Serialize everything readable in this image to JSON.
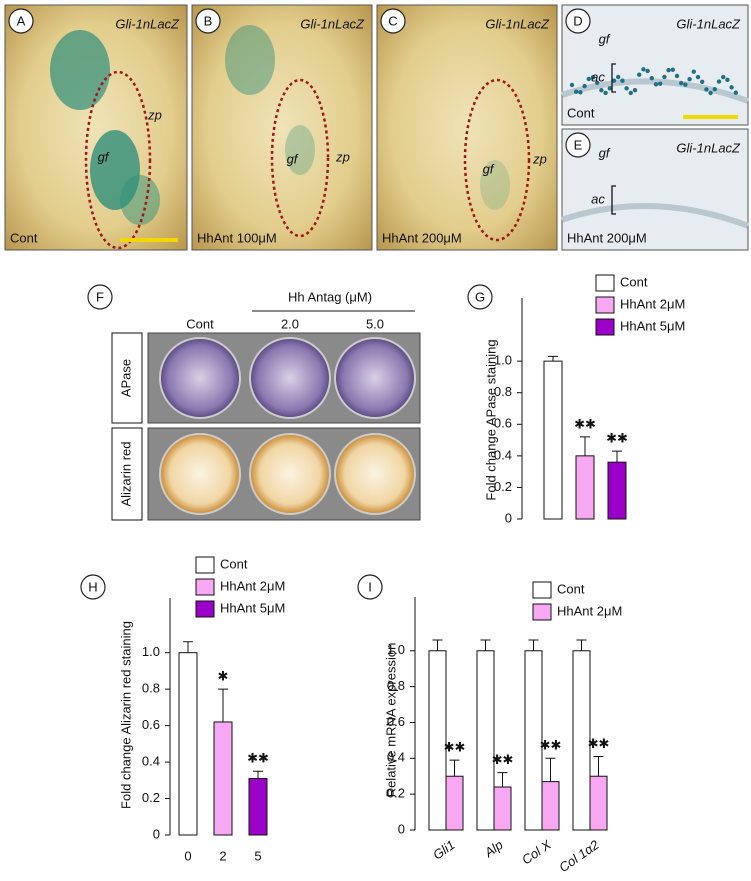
{
  "photo_panels": [
    {
      "label": "A",
      "marker": "Gli-1nLacZ",
      "annotations": [
        "gf",
        "zp"
      ],
      "condition": "Cont"
    },
    {
      "label": "B",
      "marker": "Gli-1nLacZ",
      "annotations": [
        "gf",
        "zp"
      ],
      "condition": "HhAnt 100μM"
    },
    {
      "label": "C",
      "marker": "Gli-1nLacZ",
      "annotations": [
        "gf",
        "zp"
      ],
      "condition": "HhAnt 200μM"
    },
    {
      "label": "D",
      "marker": "Gli-1nLacZ",
      "annotations": [
        "gf",
        "ac"
      ],
      "condition": "Cont"
    },
    {
      "label": "E",
      "marker": "Gli-1nLacZ",
      "annotations": [
        "gf",
        "ac"
      ],
      "condition": "HhAnt 200μM"
    }
  ],
  "culture_panel": {
    "label": "F",
    "header": "Hh Antag (μM)",
    "columns": [
      "Cont",
      "2.0",
      "5.0"
    ],
    "rows": [
      "APase",
      "Alizarin red"
    ]
  },
  "chart_data": [
    {
      "type": "bar",
      "panel_label": "G",
      "ylabel": "Fold change APase staining",
      "categories": [
        null
      ],
      "series": [
        {
          "name": "Cont",
          "color": "#ffffff",
          "values": [
            1.0
          ],
          "errors": [
            0.03
          ],
          "significance": [
            null
          ]
        },
        {
          "name": "HhAnt 2μM",
          "color": "#f7a8f2",
          "values": [
            0.4
          ],
          "errors": [
            0.12
          ],
          "significance": [
            "✱✱"
          ]
        },
        {
          "name": "HhAnt 5μM",
          "color": "#9a00c8",
          "values": [
            0.36
          ],
          "errors": [
            0.07
          ],
          "significance": [
            "✱✱"
          ]
        }
      ],
      "ylim": [
        0,
        1.4
      ],
      "yticks": [
        0,
        0.2,
        0.4,
        0.6,
        0.8,
        {
          "value": 1,
          "label": "1.0"
        }
      ]
    },
    {
      "type": "bar",
      "panel_label": "H",
      "ylabel": "Fold change Alizarin red staining",
      "categories": [
        "0",
        "2",
        "5"
      ],
      "series": [
        {
          "name": "Cont",
          "color": "#ffffff",
          "values": [
            1.0,
            null,
            null
          ],
          "errors": [
            0.06,
            null,
            null
          ],
          "significance": [
            null,
            null,
            null
          ]
        },
        {
          "name": "HhAnt 2μM",
          "color": "#f7a8f2",
          "values": [
            null,
            0.62,
            null
          ],
          "errors": [
            null,
            0.18,
            null
          ],
          "significance": [
            null,
            "✱",
            null
          ]
        },
        {
          "name": "HhAnt 5μM",
          "color": "#9a00c8",
          "values": [
            null,
            null,
            0.31
          ],
          "errors": [
            null,
            null,
            0.04
          ],
          "significance": [
            null,
            null,
            "✱✱"
          ]
        }
      ],
      "ylim": [
        0,
        1.3
      ],
      "yticks": [
        0,
        0.2,
        0.4,
        0.6,
        0.8,
        {
          "value": 1,
          "label": "1.0"
        }
      ]
    },
    {
      "type": "bar",
      "panel_label": "I",
      "ylabel": "Relative mRNA expression",
      "categories": [
        "Gli1",
        "Alp",
        "Col X",
        "Col 1α2"
      ],
      "series": [
        {
          "name": "Cont",
          "color": "#ffffff",
          "values": [
            1.0,
            1.0,
            1.0,
            1.0
          ],
          "errors": [
            0.06,
            0.06,
            0.06,
            0.06
          ],
          "significance": [
            null,
            null,
            null,
            null
          ]
        },
        {
          "name": "HhAnt 2μM",
          "color": "#f7a8f2",
          "values": [
            0.3,
            0.24,
            0.27,
            0.3
          ],
          "errors": [
            0.09,
            0.08,
            0.13,
            0.11
          ],
          "significance": [
            "✱✱",
            "✱✱",
            "✱✱",
            "✱✱"
          ]
        }
      ],
      "ylim": [
        0,
        1.3
      ],
      "yticks": [
        0,
        0.2,
        0.4,
        0.6,
        0.8,
        {
          "value": 1,
          "label": "1.0"
        }
      ]
    }
  ]
}
